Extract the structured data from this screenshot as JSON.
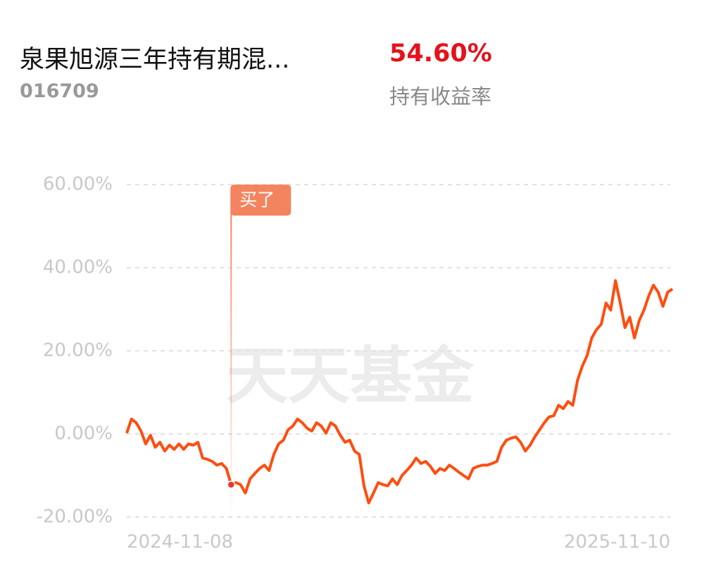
{
  "header": {
    "fund_name": "泉果旭源三年持有期混...",
    "fund_code": "016709",
    "holding_return": "54.60%",
    "holding_return_label": "持有收益率"
  },
  "chart_data": {
    "type": "line",
    "color": "#ff4d0f",
    "watermark": "天天基金",
    "categories": [
      "2024-11-08",
      null,
      null,
      null,
      null,
      null,
      null,
      null,
      null,
      null,
      null,
      null,
      null,
      null,
      null,
      null,
      null,
      null,
      null,
      null,
      null,
      null,
      null,
      null,
      null,
      null,
      null,
      null,
      null,
      null,
      null,
      null,
      null,
      null,
      null,
      null,
      null,
      null,
      null,
      null,
      null,
      null,
      null,
      null,
      null,
      null,
      null,
      null,
      null,
      null,
      null,
      null,
      null,
      null,
      null,
      null,
      null,
      null,
      null,
      null,
      null,
      null,
      null,
      null,
      null,
      null,
      null,
      null,
      null,
      null,
      null,
      null,
      null,
      null,
      null,
      null,
      null,
      null,
      null,
      null,
      null,
      null,
      null,
      null,
      null,
      null,
      null,
      null,
      null,
      null,
      null,
      null,
      null,
      null,
      null,
      null,
      null,
      null,
      null,
      null,
      null,
      null,
      null,
      null,
      null,
      null,
      null,
      null,
      null,
      null,
      null,
      null,
      null,
      null,
      null,
      "2025-11-10"
    ],
    "values": [
      0.2,
      3.6,
      2.7,
      0.7,
      -2.4,
      -0.3,
      -3.2,
      -2.0,
      -4.1,
      -2.7,
      -3.7,
      -2.4,
      -3.7,
      -2.4,
      -2.7,
      -2.0,
      -5.8,
      -6.1,
      -6.6,
      -7.5,
      -7.1,
      -8.3,
      -12.2,
      -11.7,
      -12.2,
      -14.2,
      -10.8,
      -9.5,
      -8.3,
      -7.5,
      -8.8,
      -4.9,
      -2.4,
      -1.5,
      1.0,
      1.9,
      3.6,
      2.7,
      1.4,
      0.7,
      2.7,
      1.9,
      0.2,
      2.7,
      1.9,
      -0.3,
      -2.0,
      -1.5,
      -4.1,
      -4.9,
      -12.5,
      -16.6,
      -14.2,
      -11.7,
      -12.2,
      -12.5,
      -10.8,
      -12.2,
      -10.0,
      -8.8,
      -7.5,
      -5.8,
      -7.1,
      -6.6,
      -7.8,
      -9.5,
      -8.3,
      -8.8,
      -7.5,
      -8.3,
      -9.2,
      -10.0,
      -10.8,
      -8.3,
      -7.8,
      -7.5,
      -7.5,
      -7.1,
      -6.6,
      -3.2,
      -1.5,
      -1.0,
      -0.7,
      -2.0,
      -4.1,
      -2.7,
      -0.7,
      1.0,
      2.7,
      4.1,
      4.4,
      6.9,
      6.1,
      7.8,
      6.9,
      12.9,
      16.3,
      18.8,
      23.1,
      25.1,
      26.4,
      31.5,
      29.8,
      36.9,
      31.5,
      25.6,
      28.1,
      23.1,
      27.3,
      29.8,
      33.2,
      35.8,
      34.1,
      30.7,
      34.1,
      34.9
    ],
    "ylim": [
      -20,
      60
    ],
    "yticks": [
      {
        "value": 60,
        "label": "60.00%"
      },
      {
        "value": 40,
        "label": "40.00%"
      },
      {
        "value": 20,
        "label": "20.00%"
      },
      {
        "value": 0,
        "label": "0.00%"
      },
      {
        "value": -20,
        "label": "-20.00%"
      }
    ],
    "grid": true,
    "annotations": [
      {
        "text": "买了",
        "index": 22
      }
    ]
  }
}
